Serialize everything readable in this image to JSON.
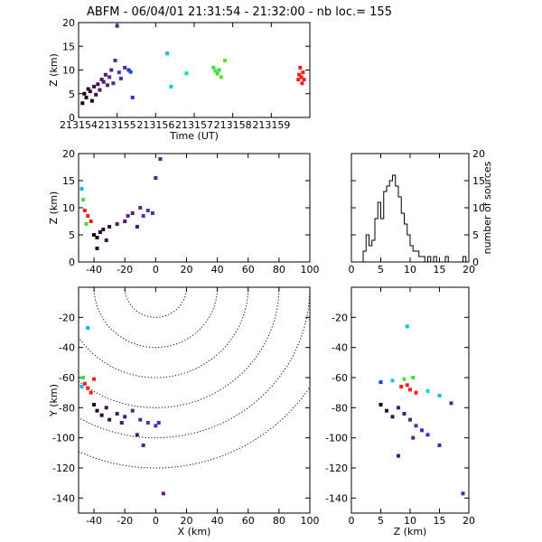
{
  "title": "ABFM - 06/04/01 21:31:54 - 21:32:00 - nb loc.=      155",
  "chart_data": [
    {
      "type": "scatter",
      "panel": "time-height",
      "xlabel": "Time (UT)",
      "ylabel": "Z (km)",
      "xlim": [
        213154,
        213160
      ],
      "ylim": [
        0,
        20
      ],
      "xticks": [
        "213154",
        "213155",
        "213156",
        "213157",
        "213158",
        "213159"
      ],
      "yticks": [
        "0",
        "5",
        "10",
        "15",
        "20"
      ],
      "points": [
        {
          "x": 213154.1,
          "y": 3.0,
          "c": "#1a0010"
        },
        {
          "x": 213154.15,
          "y": 5.0,
          "c": "#1a0010"
        },
        {
          "x": 213154.2,
          "y": 4.2,
          "c": "#2a0830"
        },
        {
          "x": 213154.25,
          "y": 6.0,
          "c": "#2a0830"
        },
        {
          "x": 213154.3,
          "y": 5.5,
          "c": "#2a0830"
        },
        {
          "x": 213154.35,
          "y": 3.5,
          "c": "#1a0010"
        },
        {
          "x": 213154.4,
          "y": 6.5,
          "c": "#3a1050"
        },
        {
          "x": 213154.45,
          "y": 4.8,
          "c": "#3a1050"
        },
        {
          "x": 213154.5,
          "y": 7.0,
          "c": "#3a1050"
        },
        {
          "x": 213154.55,
          "y": 5.8,
          "c": "#4a1a70"
        },
        {
          "x": 213154.6,
          "y": 8.0,
          "c": "#4a1a70"
        },
        {
          "x": 213154.65,
          "y": 7.5,
          "c": "#4a1a70"
        },
        {
          "x": 213154.7,
          "y": 9.0,
          "c": "#4a1a70"
        },
        {
          "x": 213154.75,
          "y": 6.8,
          "c": "#5a2090"
        },
        {
          "x": 213154.8,
          "y": 8.5,
          "c": "#5a2090"
        },
        {
          "x": 213154.85,
          "y": 10.0,
          "c": "#5a2090"
        },
        {
          "x": 213154.9,
          "y": 7.2,
          "c": "#5a2090"
        },
        {
          "x": 213154.95,
          "y": 12.0,
          "c": "#5a2090"
        },
        {
          "x": 213155.0,
          "y": 19.3,
          "c": "#5a2090"
        },
        {
          "x": 213155.05,
          "y": 9.5,
          "c": "#5030b0"
        },
        {
          "x": 213155.1,
          "y": 8.2,
          "c": "#5030b0"
        },
        {
          "x": 213155.2,
          "y": 10.5,
          "c": "#4030c0"
        },
        {
          "x": 213155.3,
          "y": 10.0,
          "c": "#3030d0"
        },
        {
          "x": 213155.4,
          "y": 4.2,
          "c": "#3030d0"
        },
        {
          "x": 213155.35,
          "y": 9.6,
          "c": "#2040e0"
        },
        {
          "x": 213156.3,
          "y": 13.5,
          "c": "#00c0e0"
        },
        {
          "x": 213156.4,
          "y": 6.5,
          "c": "#00d0d0"
        },
        {
          "x": 213156.8,
          "y": 9.3,
          "c": "#00e0b0"
        },
        {
          "x": 213157.5,
          "y": 10.5,
          "c": "#40e040"
        },
        {
          "x": 213157.55,
          "y": 9.8,
          "c": "#40e040"
        },
        {
          "x": 213157.6,
          "y": 9.2,
          "c": "#40e040"
        },
        {
          "x": 213157.65,
          "y": 10.0,
          "c": "#40e040"
        },
        {
          "x": 213157.7,
          "y": 8.5,
          "c": "#60e020"
        },
        {
          "x": 213157.8,
          "y": 12.0,
          "c": "#60e020"
        },
        {
          "x": 213159.7,
          "y": 8.0,
          "c": "#ff1a1a"
        },
        {
          "x": 213159.72,
          "y": 9.0,
          "c": "#ff1a1a"
        },
        {
          "x": 213159.75,
          "y": 10.5,
          "c": "#ff1a1a"
        },
        {
          "x": 213159.78,
          "y": 8.5,
          "c": "#ff1a1a"
        },
        {
          "x": 213159.8,
          "y": 7.2,
          "c": "#ff1a1a"
        },
        {
          "x": 213159.82,
          "y": 9.5,
          "c": "#ff1a1a"
        },
        {
          "x": 213159.85,
          "y": 8.0,
          "c": "#ff1a1a"
        }
      ]
    },
    {
      "type": "scatter",
      "panel": "x-height",
      "xlabel": "",
      "ylabel": "Z (km)",
      "xlim": [
        -50,
        100
      ],
      "ylim": [
        0,
        20
      ],
      "xticks": [
        "-40",
        "-20",
        "0",
        "20",
        "40",
        "60",
        "80",
        "100"
      ],
      "yticks": [
        "0",
        "5",
        "10",
        "15",
        "20"
      ],
      "points": [
        {
          "x": -48,
          "y": 13.5,
          "c": "#00c0e0"
        },
        {
          "x": -47,
          "y": 11.5,
          "c": "#40e040"
        },
        {
          "x": -46,
          "y": 9.5,
          "c": "#ff1a1a"
        },
        {
          "x": -44,
          "y": 8.5,
          "c": "#ff1a1a"
        },
        {
          "x": -45,
          "y": 7.0,
          "c": "#40e040"
        },
        {
          "x": -42,
          "y": 7.5,
          "c": "#ff1a1a"
        },
        {
          "x": -40,
          "y": 5.0,
          "c": "#1a0010"
        },
        {
          "x": -38,
          "y": 4.5,
          "c": "#1a0010"
        },
        {
          "x": -36,
          "y": 5.5,
          "c": "#2a0830"
        },
        {
          "x": -34,
          "y": 6.0,
          "c": "#2a0830"
        },
        {
          "x": -38,
          "y": 2.5,
          "c": "#2a0830"
        },
        {
          "x": -32,
          "y": 4.0,
          "c": "#3a1050"
        },
        {
          "x": -30,
          "y": 6.5,
          "c": "#3a1050"
        },
        {
          "x": -25,
          "y": 7.0,
          "c": "#4a1a70"
        },
        {
          "x": -20,
          "y": 7.5,
          "c": "#4a1a70"
        },
        {
          "x": -18,
          "y": 8.5,
          "c": "#5a2090"
        },
        {
          "x": -15,
          "y": 9.0,
          "c": "#5a2090"
        },
        {
          "x": -10,
          "y": 10.0,
          "c": "#5a2090"
        },
        {
          "x": -8,
          "y": 8.5,
          "c": "#5030b0"
        },
        {
          "x": -5,
          "y": 9.5,
          "c": "#5030b0"
        },
        {
          "x": -2,
          "y": 9.0,
          "c": "#4030c0"
        },
        {
          "x": 3,
          "y": 19.0,
          "c": "#5a2090"
        },
        {
          "x": 0,
          "y": 15.5,
          "c": "#5a2090"
        },
        {
          "x": -12,
          "y": 6.5,
          "c": "#4a1a70"
        }
      ]
    },
    {
      "type": "bar",
      "panel": "height-histogram",
      "xlabel": "",
      "ylabel": "number of sources",
      "xlim": [
        0,
        20
      ],
      "ylim": [
        0,
        20
      ],
      "xticks": [
        "0",
        "5",
        "10",
        "15",
        "20"
      ],
      "yticks": [
        "0",
        "5",
        "10",
        "15",
        "20"
      ],
      "bin_width": 0.5,
      "x": [
        1.0,
        1.5,
        2.0,
        2.5,
        3.0,
        3.5,
        4.0,
        4.5,
        5.0,
        5.5,
        6.0,
        6.5,
        7.0,
        7.5,
        8.0,
        8.5,
        9.0,
        9.5,
        10.0,
        10.5,
        11.0,
        11.5,
        12.0,
        12.5,
        13.0,
        13.5,
        14.0,
        14.5,
        15.0,
        15.5,
        16.0,
        16.5,
        17.0,
        17.5,
        18.0,
        18.5,
        19.0
      ],
      "values": [
        0,
        0,
        2,
        5,
        3,
        4,
        8,
        11,
        8,
        13,
        14,
        15,
        16,
        14,
        12,
        9,
        7,
        5,
        3,
        2,
        2,
        1,
        1,
        0,
        1,
        0,
        1,
        0,
        0,
        0,
        1,
        0,
        0,
        0,
        0,
        0,
        1
      ]
    },
    {
      "type": "scatter",
      "panel": "plan-view",
      "xlabel": "X (km)",
      "ylabel": "Y (km)",
      "xlim": [
        -50,
        100
      ],
      "ylim": [
        -150,
        0
      ],
      "xticks": [
        "-40",
        "-20",
        "0",
        "20",
        "40",
        "60",
        "80",
        "100"
      ],
      "yticks": [
        "-140",
        "-120",
        "-100",
        "-80",
        "-60",
        "-40",
        "-20"
      ],
      "range_rings_km": [
        20,
        40,
        60,
        80,
        100,
        120
      ],
      "ring_center": [
        0,
        0
      ],
      "points": [
        {
          "x": -44,
          "y": -27,
          "c": "#00c0e0"
        },
        {
          "x": -47,
          "y": -60,
          "c": "#40e040"
        },
        {
          "x": -46,
          "y": -64,
          "c": "#ff1a1a"
        },
        {
          "x": -44,
          "y": -67,
          "c": "#ff1a1a"
        },
        {
          "x": -42,
          "y": -70,
          "c": "#ff1a1a"
        },
        {
          "x": -48,
          "y": -66,
          "c": "#00c0e0"
        },
        {
          "x": -40,
          "y": -61,
          "c": "#ff1a1a"
        },
        {
          "x": -40,
          "y": -78,
          "c": "#1a0010"
        },
        {
          "x": -38,
          "y": -82,
          "c": "#2a0830"
        },
        {
          "x": -35,
          "y": -85,
          "c": "#2a0830"
        },
        {
          "x": -32,
          "y": -80,
          "c": "#3a1050"
        },
        {
          "x": -30,
          "y": -88,
          "c": "#3a1050"
        },
        {
          "x": -25,
          "y": -84,
          "c": "#4a1a70"
        },
        {
          "x": -20,
          "y": -86,
          "c": "#4a1a70"
        },
        {
          "x": -15,
          "y": -82,
          "c": "#5a2090"
        },
        {
          "x": -10,
          "y": -88,
          "c": "#5a2090"
        },
        {
          "x": -5,
          "y": -90,
          "c": "#5030b0"
        },
        {
          "x": 0,
          "y": -92,
          "c": "#4030c0"
        },
        {
          "x": 2,
          "y": -90,
          "c": "#3030d0"
        },
        {
          "x": -8,
          "y": -105,
          "c": "#5a2090"
        },
        {
          "x": 5,
          "y": -137,
          "c": "#5a2090"
        },
        {
          "x": -12,
          "y": -98,
          "c": "#4a1a70"
        },
        {
          "x": -22,
          "y": -90,
          "c": "#4a1a70"
        }
      ]
    },
    {
      "type": "scatter",
      "panel": "z-y-view",
      "xlabel": "Z (km)",
      "ylabel": "",
      "xlim": [
        0,
        20
      ],
      "ylim": [
        -150,
        0
      ],
      "xticks": [
        "0",
        "5",
        "10",
        "15",
        "20"
      ],
      "yticks": [
        "-140",
        "-120",
        "-100",
        "-80",
        "-60",
        "-40",
        "-20"
      ],
      "points": [
        {
          "x": 9.5,
          "y": -26,
          "c": "#00c0e0"
        },
        {
          "x": 5,
          "y": -63,
          "c": "#2040e0"
        },
        {
          "x": 7,
          "y": -62,
          "c": "#00d0d0"
        },
        {
          "x": 9,
          "y": -61,
          "c": "#40e040"
        },
        {
          "x": 10.5,
          "y": -60,
          "c": "#40e040"
        },
        {
          "x": 8.5,
          "y": -66,
          "c": "#ff1a1a"
        },
        {
          "x": 9.5,
          "y": -65,
          "c": "#ff1a1a"
        },
        {
          "x": 10,
          "y": -68,
          "c": "#ff1a1a"
        },
        {
          "x": 11,
          "y": -70,
          "c": "#ff1a1a"
        },
        {
          "x": 13,
          "y": -69,
          "c": "#00e0b0"
        },
        {
          "x": 15,
          "y": -72,
          "c": "#00c0e0"
        },
        {
          "x": 5,
          "y": -78,
          "c": "#1a0010"
        },
        {
          "x": 6,
          "y": -82,
          "c": "#2a0830"
        },
        {
          "x": 7,
          "y": -86,
          "c": "#3a1050"
        },
        {
          "x": 8,
          "y": -80,
          "c": "#4a1a70"
        },
        {
          "x": 9,
          "y": -84,
          "c": "#4a1a70"
        },
        {
          "x": 10,
          "y": -88,
          "c": "#5a2090"
        },
        {
          "x": 11,
          "y": -92,
          "c": "#5030b0"
        },
        {
          "x": 12,
          "y": -95,
          "c": "#4030c0"
        },
        {
          "x": 13,
          "y": -98,
          "c": "#3030d0"
        },
        {
          "x": 15,
          "y": -105,
          "c": "#5a2090"
        },
        {
          "x": 17,
          "y": -77,
          "c": "#5a2090"
        },
        {
          "x": 19,
          "y": -137,
          "c": "#5a2090"
        },
        {
          "x": 8,
          "y": -112,
          "c": "#4a1a70"
        },
        {
          "x": 10.5,
          "y": -100,
          "c": "#5a2090"
        }
      ]
    }
  ]
}
